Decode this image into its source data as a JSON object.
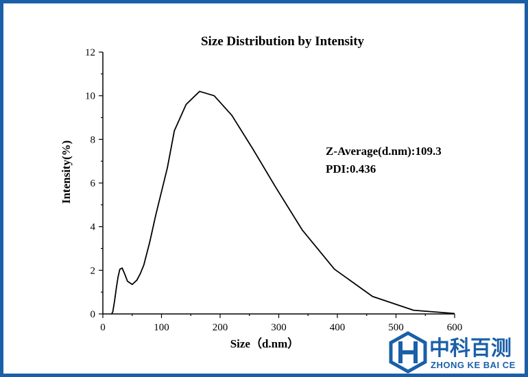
{
  "chart_data": {
    "type": "line",
    "title": "Size Distribution by Intensity",
    "xlabel": "Size（d.nm）",
    "ylabel": "Intensity(%)",
    "xlim": [
      0,
      600
    ],
    "ylim": [
      0,
      12
    ],
    "x_ticks": [
      0,
      100,
      200,
      300,
      400,
      500,
      600
    ],
    "y_ticks": [
      0,
      2,
      4,
      6,
      8,
      10,
      12
    ],
    "grid": false,
    "series": [
      {
        "color": "#000000",
        "x": [
          15,
          17,
          20,
          23,
          26,
          29,
          33,
          37,
          42,
          50,
          58,
          64,
          70,
          80,
          90,
          100,
          110,
          122,
          142,
          165,
          190,
          220,
          255,
          295,
          340,
          395,
          460,
          530,
          600
        ],
        "y": [
          0,
          0.1,
          0.6,
          1.2,
          1.7,
          2.05,
          2.1,
          1.85,
          1.5,
          1.35,
          1.55,
          1.85,
          2.25,
          3.3,
          4.5,
          5.6,
          6.7,
          8.4,
          9.6,
          10.2,
          10.0,
          9.1,
          7.6,
          5.8,
          3.85,
          2.05,
          0.8,
          0.17,
          0.02
        ]
      }
    ],
    "annotations": [
      "Z-Average(d.nm):109.3",
      "PDI:0.436"
    ]
  },
  "logo": {
    "name_cn": "中科百测",
    "name_en": "ZHONG KE BAI CE",
    "color": "#1a5fa8",
    "icon": "hexagon-h-logo-icon"
  },
  "colors": {
    "border": "#1a5fa8",
    "line": "#000000"
  }
}
